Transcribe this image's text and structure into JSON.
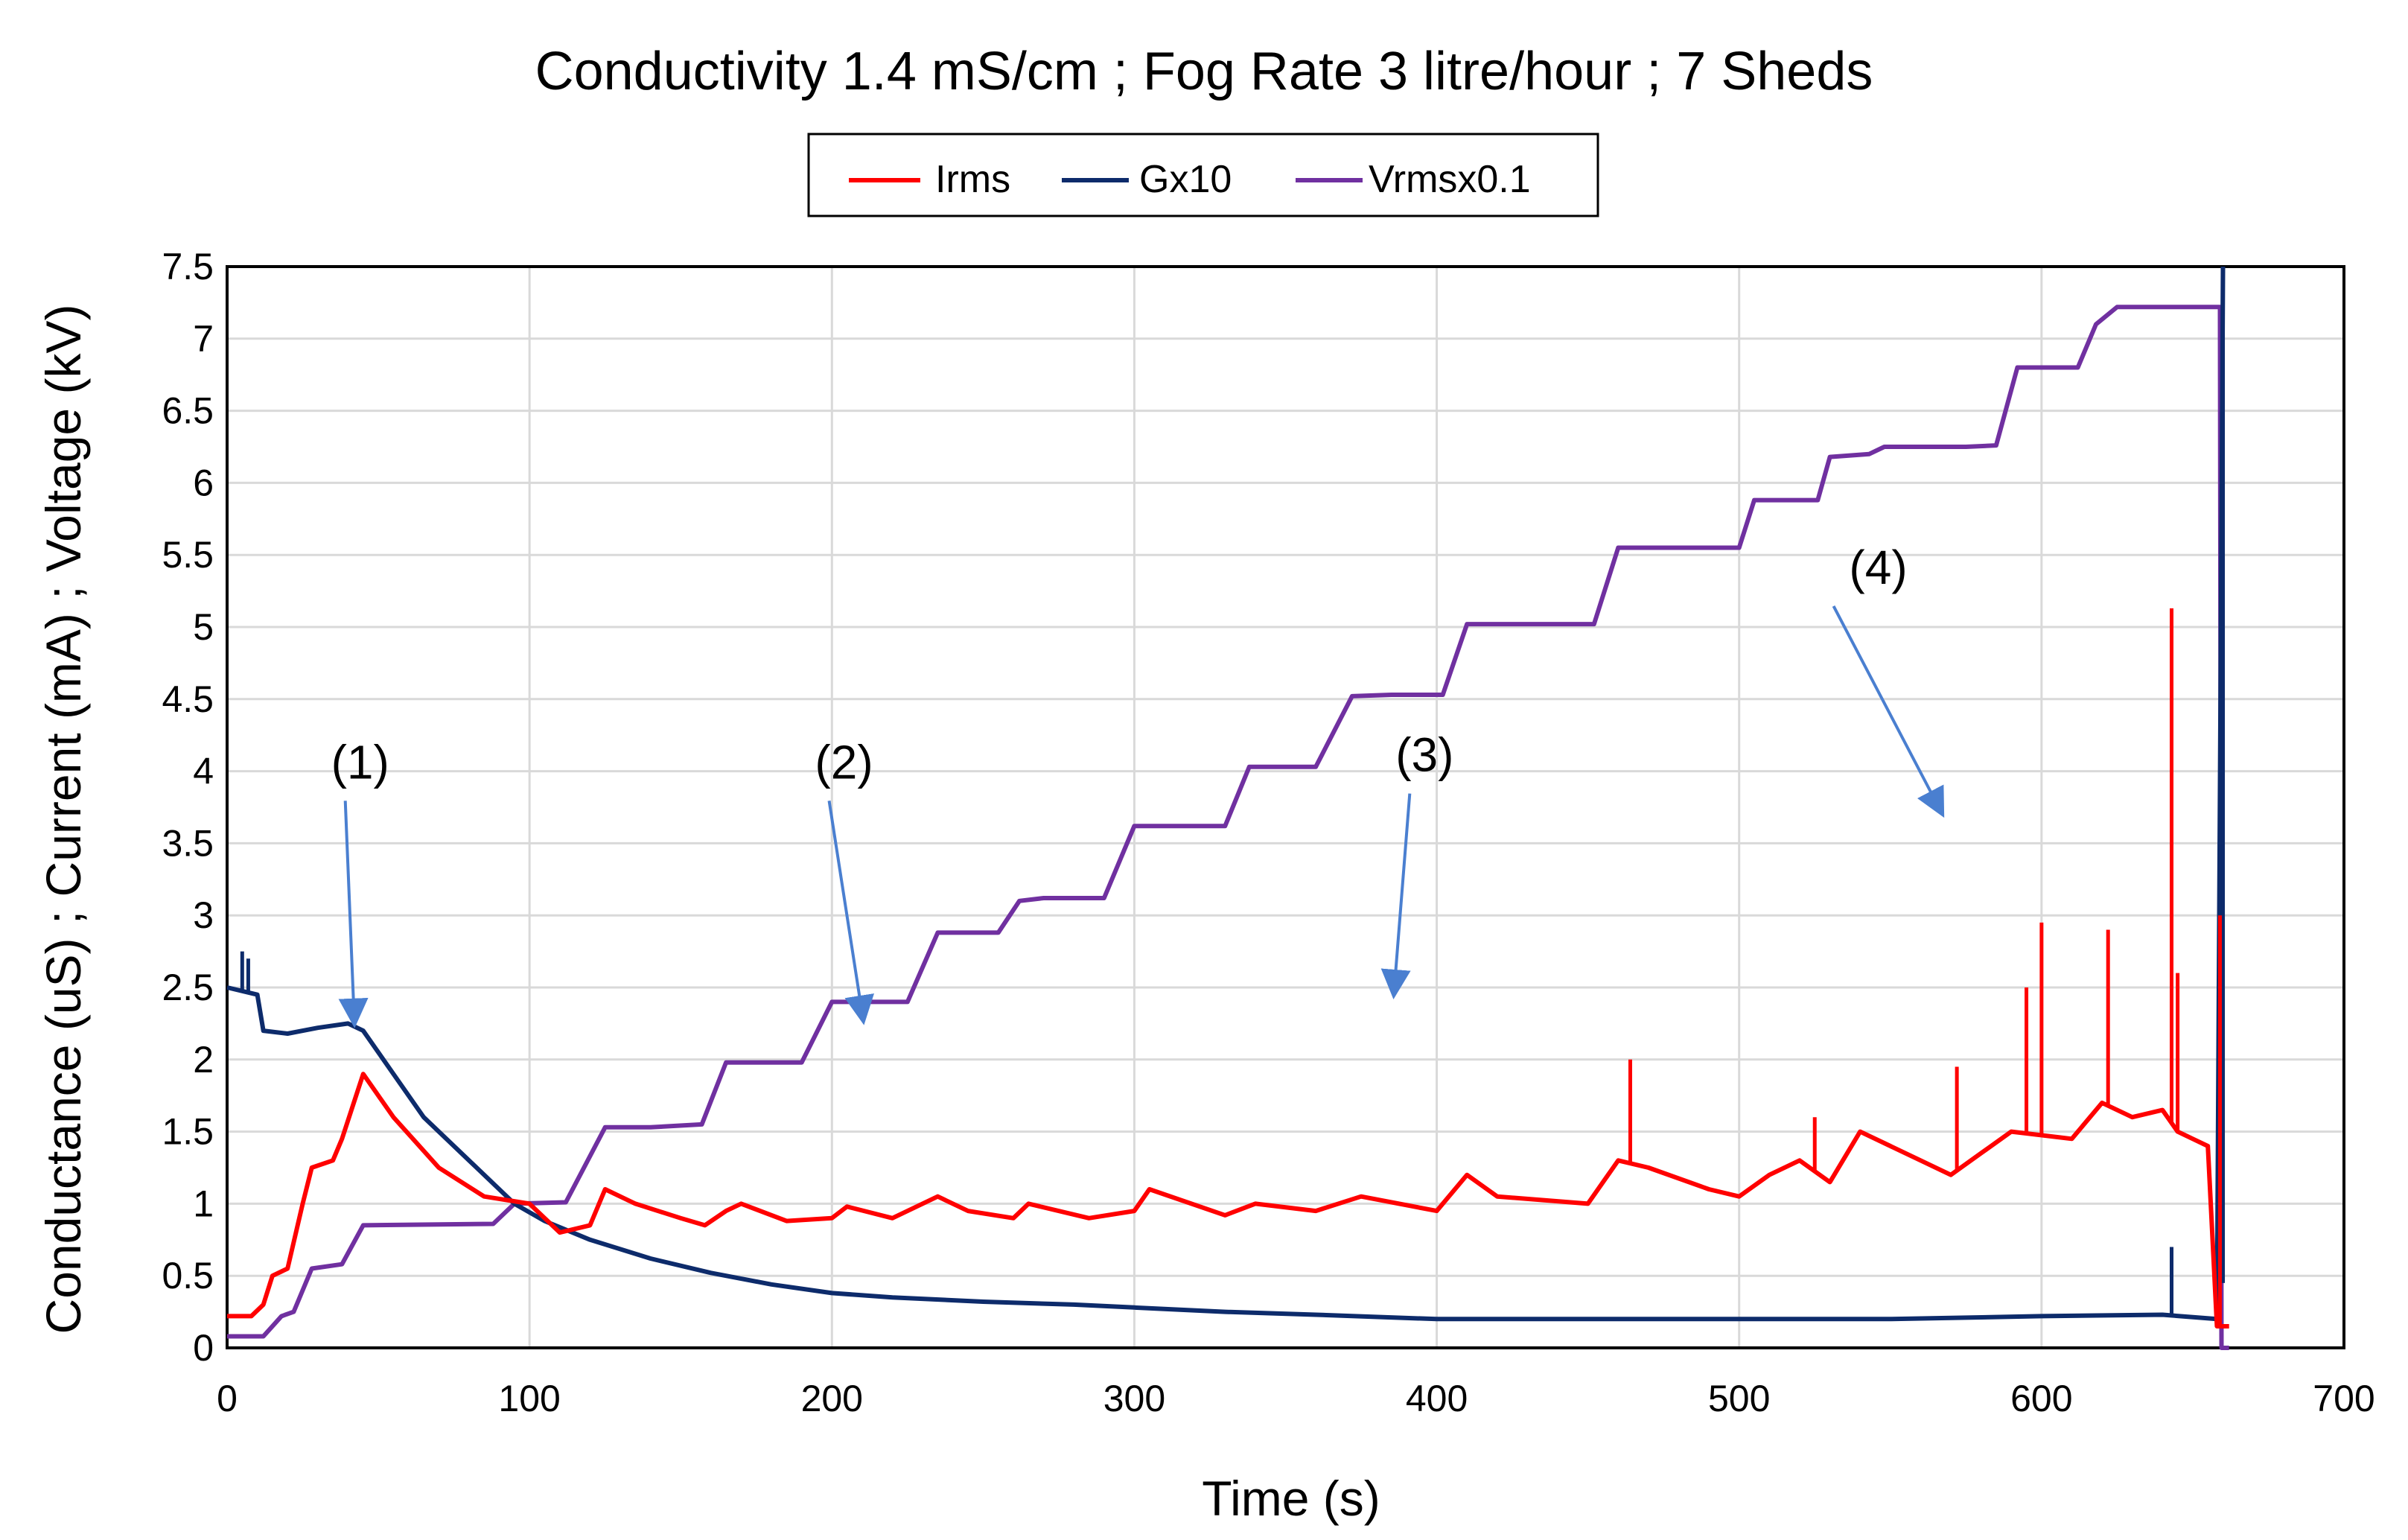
{
  "chart_data": {
    "type": "line",
    "title": "Conductivity 1.4 mS/cm  ;  Fog Rate 3 litre/hour  ;  7 Sheds",
    "xlabel": "Time (s)",
    "ylabel": "Conductance (uS)  ;  Current (mA)  ;  Voltage (kV)",
    "xlim": [
      0,
      700
    ],
    "ylim": [
      0,
      7.5
    ],
    "x_ticks": [
      "0",
      "100",
      "200",
      "300",
      "400",
      "500",
      "600",
      "700"
    ],
    "y_ticks": [
      "0",
      "0.5",
      "1",
      "1.5",
      "2",
      "2.5",
      "3",
      "3.5",
      "4",
      "4.5",
      "5",
      "5.5",
      "6",
      "6.5",
      "7",
      "7.5"
    ],
    "grid": true,
    "legend": {
      "placement": "top-center",
      "entries": [
        "Irms",
        "Gx10",
        "Vrmsx0.1"
      ]
    },
    "series": [
      {
        "name": "Irms",
        "color": "#ff0000",
        "x": [
          0,
          8,
          12,
          15,
          20,
          25,
          28,
          35,
          38,
          45,
          55,
          70,
          85,
          100,
          110,
          120,
          125,
          135,
          150,
          158,
          165,
          170,
          185,
          200,
          205,
          220,
          235,
          245,
          260,
          265,
          285,
          300,
          305,
          330,
          340,
          360,
          375,
          400,
          410,
          420,
          450,
          460,
          470,
          490,
          500,
          510,
          520,
          530,
          540,
          560,
          570,
          580,
          590,
          610,
          620,
          630,
          640,
          645,
          650,
          655,
          658,
          662
        ],
        "values": [
          0.22,
          0.22,
          0.3,
          0.5,
          0.55,
          1.0,
          1.25,
          1.3,
          1.45,
          1.9,
          1.6,
          1.25,
          1.05,
          1.0,
          0.8,
          0.85,
          1.1,
          1.0,
          0.9,
          0.85,
          0.95,
          1.0,
          0.88,
          0.9,
          0.98,
          0.9,
          1.05,
          0.95,
          0.9,
          1.0,
          0.9,
          0.95,
          1.1,
          0.92,
          1.0,
          0.95,
          1.05,
          0.95,
          1.2,
          1.05,
          1.0,
          1.3,
          1.25,
          1.1,
          1.05,
          1.2,
          1.3,
          1.15,
          1.5,
          1.3,
          1.2,
          1.35,
          1.5,
          1.45,
          1.7,
          1.6,
          1.65,
          1.5,
          1.45,
          1.4,
          0.15,
          0.15
        ],
        "spikes": [
          [
            464,
            2.0
          ],
          [
            525,
            1.6
          ],
          [
            572,
            1.95
          ],
          [
            595,
            2.5
          ],
          [
            600,
            2.95
          ],
          [
            622,
            2.9
          ],
          [
            643,
            5.13
          ],
          [
            645,
            2.6
          ],
          [
            659,
            3.0
          ]
        ]
      },
      {
        "name": "Gx10",
        "color": "#0d2b6b",
        "x": [
          0,
          10,
          12,
          20,
          30,
          40,
          45,
          55,
          65,
          80,
          95,
          105,
          120,
          140,
          160,
          180,
          200,
          220,
          250,
          280,
          300,
          330,
          360,
          400,
          450,
          500,
          550,
          600,
          640,
          658,
          660
        ],
        "values": [
          2.5,
          2.45,
          2.2,
          2.18,
          2.22,
          2.25,
          2.2,
          1.9,
          1.6,
          1.3,
          1.0,
          0.88,
          0.75,
          0.62,
          0.52,
          0.44,
          0.38,
          0.35,
          0.32,
          0.3,
          0.28,
          0.25,
          0.23,
          0.2,
          0.2,
          0.2,
          0.2,
          0.22,
          0.23,
          0.2,
          7.5
        ],
        "spikes": [
          [
            5,
            2.75
          ],
          [
            7,
            2.7
          ],
          [
            643,
            0.7
          ],
          [
            660,
            0.45
          ]
        ]
      },
      {
        "name": "Vrmsx0.1",
        "color": "#7030a0",
        "x": [
          0,
          12,
          18,
          22,
          28,
          38,
          45,
          88,
          95,
          112,
          125,
          140,
          157,
          165,
          190,
          200,
          212,
          225,
          235,
          255,
          262,
          270,
          290,
          300,
          330,
          338,
          355,
          360,
          372,
          385,
          402,
          410,
          452,
          460,
          500,
          505,
          526,
          530,
          543,
          548,
          552,
          575,
          585,
          592,
          612,
          618,
          625,
          659,
          659.5,
          662
        ],
        "values": [
          0.08,
          0.08,
          0.22,
          0.25,
          0.55,
          0.58,
          0.85,
          0.86,
          1.0,
          1.01,
          1.53,
          1.53,
          1.55,
          1.98,
          1.98,
          2.4,
          2.4,
          2.4,
          2.88,
          2.88,
          3.1,
          3.12,
          3.12,
          3.62,
          3.62,
          4.03,
          4.03,
          4.03,
          4.52,
          4.53,
          4.53,
          5.02,
          5.02,
          5.55,
          5.55,
          5.88,
          5.88,
          6.18,
          6.2,
          6.25,
          6.25,
          6.25,
          6.26,
          6.8,
          6.8,
          7.1,
          7.22,
          7.22,
          0,
          0
        ]
      }
    ],
    "annotations": [
      {
        "text": "(1)",
        "x": 44,
        "y": 3.95,
        "arrow_to": [
          42,
          2.3
        ]
      },
      {
        "text": "(2)",
        "x": 204,
        "y": 3.95,
        "arrow_to": [
          210,
          2.32
        ]
      },
      {
        "text": "(3)",
        "x": 396,
        "y": 4.0,
        "arrow_to": [
          386,
          2.5
        ]
      },
      {
        "text": "(4)",
        "x": 546,
        "y": 5.3,
        "arrow_to": [
          566,
          3.75
        ]
      }
    ]
  }
}
